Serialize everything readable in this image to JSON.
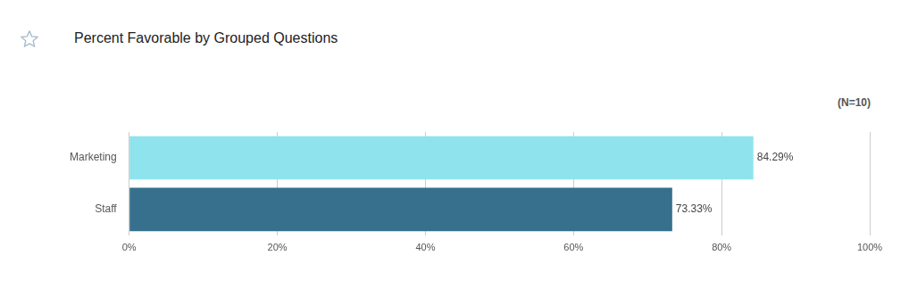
{
  "chart_data": {
    "type": "bar",
    "orientation": "horizontal",
    "title": "Percent Favorable by Grouped Questions",
    "annotations": [
      "(N=10)"
    ],
    "categories": [
      "Marketing",
      "Staff"
    ],
    "values": [
      84.29,
      73.33
    ],
    "value_labels": [
      "84.29%",
      "73.33%"
    ],
    "data_labels": true,
    "colors": [
      "#8ee3ed",
      "#37708c"
    ],
    "xlim": [
      0,
      100
    ],
    "xticks": [
      {
        "value": 0,
        "label": "0%"
      },
      {
        "value": 20,
        "label": "20%"
      },
      {
        "value": 40,
        "label": "40%"
      },
      {
        "value": 60,
        "label": "60%"
      },
      {
        "value": 80,
        "label": "80%"
      },
      {
        "value": 100,
        "label": "100%"
      }
    ],
    "grid": true
  }
}
